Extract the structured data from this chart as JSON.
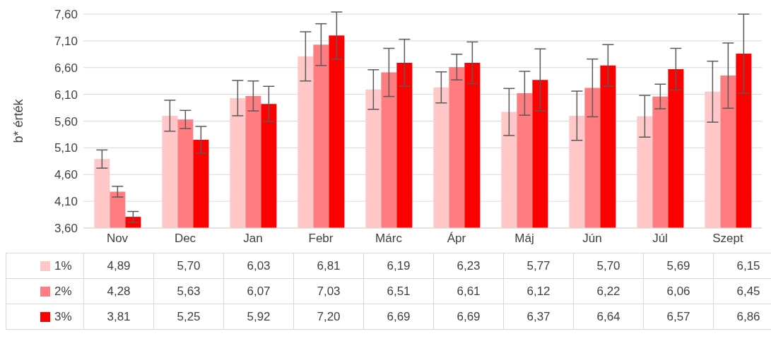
{
  "chart_data": {
    "type": "bar",
    "ylabel": "b* érték",
    "categories": [
      "Nov",
      "Dec",
      "Jan",
      "Febr",
      "Márc",
      "Ápr",
      "Máj",
      "Jún",
      "Júl",
      "Szept"
    ],
    "series": [
      {
        "name": "1%",
        "color": "#ffc7c7",
        "values": [
          4.89,
          5.7,
          6.03,
          6.81,
          6.19,
          6.23,
          5.77,
          5.7,
          5.69,
          6.15
        ],
        "value_labels": [
          "4,89",
          "5,70",
          "6,03",
          "6,81",
          "6,19",
          "6,23",
          "5,77",
          "5,70",
          "5,69",
          "6,15"
        ],
        "errors": [
          0.17,
          0.29,
          0.33,
          0.46,
          0.37,
          0.29,
          0.44,
          0.46,
          0.39,
          0.57
        ]
      },
      {
        "name": "2%",
        "color": "#ff7c80",
        "values": [
          4.28,
          5.63,
          6.07,
          7.03,
          6.51,
          6.61,
          6.12,
          6.22,
          6.06,
          6.45
        ],
        "value_labels": [
          "4,28",
          "5,63",
          "6,07",
          "7,03",
          "6,51",
          "6,61",
          "6,12",
          "6,22",
          "6,06",
          "6,45"
        ],
        "errors": [
          0.1,
          0.17,
          0.28,
          0.39,
          0.45,
          0.24,
          0.41,
          0.54,
          0.23,
          0.61
        ]
      },
      {
        "name": "3%",
        "color": "#ff0000",
        "values": [
          3.81,
          5.25,
          5.92,
          7.2,
          6.69,
          6.69,
          6.37,
          6.64,
          6.57,
          6.86
        ],
        "value_labels": [
          "3,81",
          "5,25",
          "5,92",
          "7,20",
          "6,69",
          "6,69",
          "6,37",
          "6,64",
          "6,57",
          "6,86"
        ],
        "errors": [
          0.1,
          0.25,
          0.33,
          0.44,
          0.44,
          0.39,
          0.58,
          0.39,
          0.39,
          0.74
        ]
      }
    ],
    "ylim": [
      3.6,
      7.6
    ],
    "yticks": [
      {
        "value": 3.6,
        "label": "3,60"
      },
      {
        "value": 4.1,
        "label": "4,10"
      },
      {
        "value": 4.6,
        "label": "4,60"
      },
      {
        "value": 5.1,
        "label": "5,10"
      },
      {
        "value": 5.6,
        "label": "5,60"
      },
      {
        "value": 6.1,
        "label": "6,10"
      },
      {
        "value": 6.6,
        "label": "6,60"
      },
      {
        "value": 7.1,
        "label": "7,10"
      },
      {
        "value": 7.6,
        "label": "7,60"
      }
    ],
    "grid": "y",
    "legend": "bottom"
  }
}
